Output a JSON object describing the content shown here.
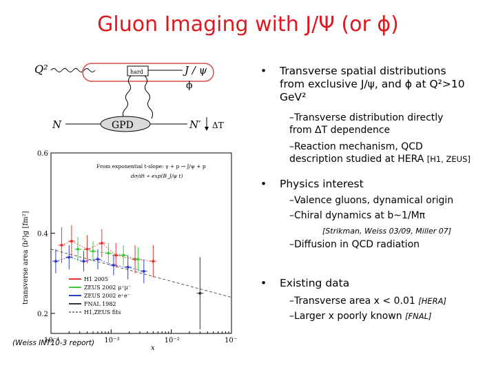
{
  "title": "Gluon Imaging with J/Ψ (or ϕ)",
  "diagram": {
    "q2": "Q²",
    "hard": "hard",
    "jpsi": "J / ψ",
    "phi": "ϕ",
    "n_in": "N",
    "gpd": "GPD",
    "n_out": "N′",
    "delta": "ΔT"
  },
  "bullets": {
    "b1_line1": "Transverse spatial distributions",
    "b1_line2": "from exclusive J/ψ, and ϕ at Q²>10",
    "b1_line3": "GeV²",
    "s1_line1": "–Transverse distribution directly",
    "s1_line2": "from ΔT dependence",
    "s2_line1": "–Reaction mechanism, QCD",
    "s2_line2": "description studied at HERA",
    "s2_ref": "[H1, ZEUS]",
    "b2": "Physics interest",
    "s3": "–Valence gluons, dynamical origin",
    "s4": "–Chiral dynamics at b~1/Mπ",
    "s4_ref": "[Strikman, Weiss 03/09, Miller 07]",
    "s5": "–Diffusion in QCD radiation",
    "b3": "Existing data",
    "s6": "–Transverse area x < 0.01",
    "s6_ref": "[HERA]",
    "s7": "–Larger x poorly known",
    "s7_ref": "[FNAL]",
    "bullet_char": "•"
  },
  "footnote": "(Weiss INT10-3 report)",
  "chart_data": {
    "type": "scatter",
    "xscale": "log",
    "xlim": [
      0.0001,
      0.1
    ],
    "ylim": [
      0.15,
      0.6
    ],
    "ylabel": "transverse area ⟨b²⟩g [fm²]",
    "xlabel": "x",
    "xticks": [
      "10⁻⁴",
      "10⁻³",
      "10⁻²",
      "10⁻¹"
    ],
    "yticks": [
      "0.2",
      "0.4",
      "0.6"
    ],
    "annotation_line1": "From exponential t-slope: γ + p → J/ψ + p",
    "annotation_line2": "dσ/dt ∝ exp(B_J/ψ t)",
    "legend": [
      "H1 2005",
      "ZEUS 2002 μ⁺μ⁻",
      "ZEUS 2002 e⁺e⁻",
      "FNAL 1982",
      "H1,ZEUS fits"
    ],
    "series": [
      {
        "name": "H1 2005",
        "color": "#e8302c",
        "x": [
          0.00015,
          0.00022,
          0.0004,
          0.0007,
          0.0012,
          0.0025,
          0.005
        ],
        "y": [
          0.37,
          0.38,
          0.36,
          0.375,
          0.345,
          0.335,
          0.33
        ],
        "err": [
          0.045,
          0.04,
          0.035,
          0.035,
          0.03,
          0.035,
          0.04
        ]
      },
      {
        "name": "ZEUS 2002 μ⁺μ⁻",
        "color": "#3cc83c",
        "x": [
          0.00028,
          0.0005,
          0.0009,
          0.0016,
          0.0028
        ],
        "y": [
          0.36,
          0.355,
          0.35,
          0.345,
          0.335
        ],
        "err": [
          0.03,
          0.025,
          0.025,
          0.025,
          0.03
        ]
      },
      {
        "name": "ZEUS 2002 e⁺e⁻",
        "color": "#2a3cc8",
        "x": [
          0.00012,
          0.0002,
          0.00035,
          0.0006,
          0.0011,
          0.0019,
          0.0035
        ],
        "y": [
          0.33,
          0.34,
          0.33,
          0.335,
          0.32,
          0.315,
          0.305
        ],
        "err": [
          0.03,
          0.03,
          0.025,
          0.025,
          0.025,
          0.03,
          0.03
        ]
      },
      {
        "name": "FNAL 1982",
        "color": "#333333",
        "x": [
          0.03
        ],
        "y": [
          0.25
        ],
        "err": [
          0.09
        ]
      }
    ]
  }
}
